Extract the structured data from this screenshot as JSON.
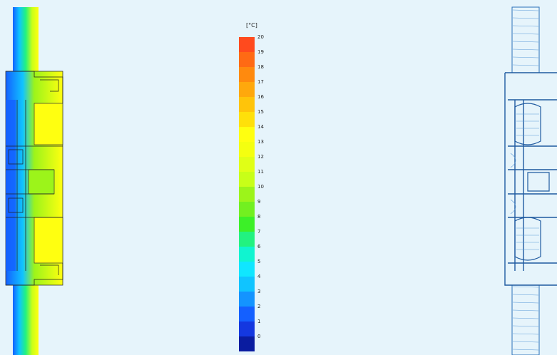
{
  "legend": {
    "unit": "[°C]",
    "ticks": [
      "20",
      "19",
      "18",
      "17",
      "16",
      "15",
      "14",
      "13",
      "12",
      "11",
      "10",
      "9",
      "8",
      "7",
      "6",
      "5",
      "4",
      "3",
      "2",
      "1",
      "0"
    ],
    "colors": [
      "#ff4a1e",
      "#ff6a14",
      "#ff8a0e",
      "#ffa80c",
      "#ffc40a",
      "#ffe00a",
      "#ffff10",
      "#f4ff10",
      "#e0ff16",
      "#c8ff18",
      "#9cf41a",
      "#72f020",
      "#3cf028",
      "#22f280",
      "#10f4d0",
      "#10e6ff",
      "#10c4ff",
      "#1494ff",
      "#1460ff",
      "#1438e0",
      "#0a1ca0"
    ]
  }
}
